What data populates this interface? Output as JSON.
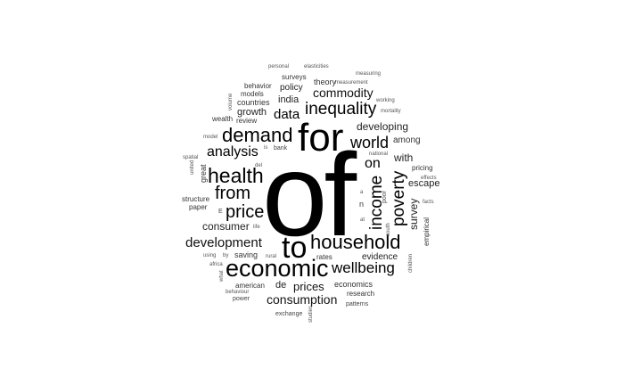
{
  "colors": {
    "background": "#ffffff",
    "strong": "#000000",
    "medium": "#222222",
    "light": "#555555"
  },
  "words": [
    {
      "text": "of"
    },
    {
      "text": "for"
    },
    {
      "text": "to"
    },
    {
      "text": "economic"
    },
    {
      "text": "household"
    },
    {
      "text": "health"
    },
    {
      "text": "demand"
    },
    {
      "text": "inequality"
    },
    {
      "text": "income"
    },
    {
      "text": "poverty"
    },
    {
      "text": "from"
    },
    {
      "text": "price"
    },
    {
      "text": "wellbeing"
    },
    {
      "text": "world"
    },
    {
      "text": "analysis"
    },
    {
      "text": "development"
    },
    {
      "text": "consumption"
    },
    {
      "text": "data"
    },
    {
      "text": "commodity"
    },
    {
      "text": "developing"
    },
    {
      "text": "on"
    },
    {
      "text": "survey"
    },
    {
      "text": "prices"
    },
    {
      "text": "consumer"
    },
    {
      "text": "evidence"
    },
    {
      "text": "with"
    },
    {
      "text": "escape"
    },
    {
      "text": "india"
    },
    {
      "text": "policy"
    },
    {
      "text": "among"
    },
    {
      "text": "growth"
    },
    {
      "text": "economics"
    },
    {
      "text": "de"
    },
    {
      "text": "theory"
    },
    {
      "text": "surveys"
    },
    {
      "text": "behavior"
    },
    {
      "text": "models"
    },
    {
      "text": "countries"
    },
    {
      "text": "review"
    },
    {
      "text": "wealth"
    },
    {
      "text": "rates"
    },
    {
      "text": "research"
    },
    {
      "text": "saving"
    },
    {
      "text": "american"
    },
    {
      "text": "great"
    },
    {
      "text": "paper"
    },
    {
      "text": "structure"
    },
    {
      "text": "empirical"
    },
    {
      "text": "pricing"
    },
    {
      "text": "effects"
    },
    {
      "text": "facts"
    },
    {
      "text": "patterns"
    },
    {
      "text": "exchange"
    },
    {
      "text": "power"
    },
    {
      "text": "behaviour"
    },
    {
      "text": "africa"
    },
    {
      "text": "using"
    },
    {
      "text": "by"
    },
    {
      "text": "rural"
    },
    {
      "text": "life"
    },
    {
      "text": "del"
    },
    {
      "text": "spatial"
    },
    {
      "text": "united"
    },
    {
      "text": "model"
    },
    {
      "text": "volume"
    },
    {
      "text": "personal"
    },
    {
      "text": "elasticities"
    },
    {
      "text": "measuring"
    },
    {
      "text": "measurement"
    },
    {
      "text": "working"
    },
    {
      "text": "mortality"
    },
    {
      "text": "national"
    },
    {
      "text": "bank"
    },
    {
      "text": "is"
    },
    {
      "text": "poor"
    },
    {
      "text": "south"
    },
    {
      "text": "at"
    },
    {
      "text": "children"
    },
    {
      "text": "E"
    },
    {
      "text": "n"
    },
    {
      "text": "a"
    },
    {
      "text": "what"
    },
    {
      "text": "studies"
    }
  ]
}
